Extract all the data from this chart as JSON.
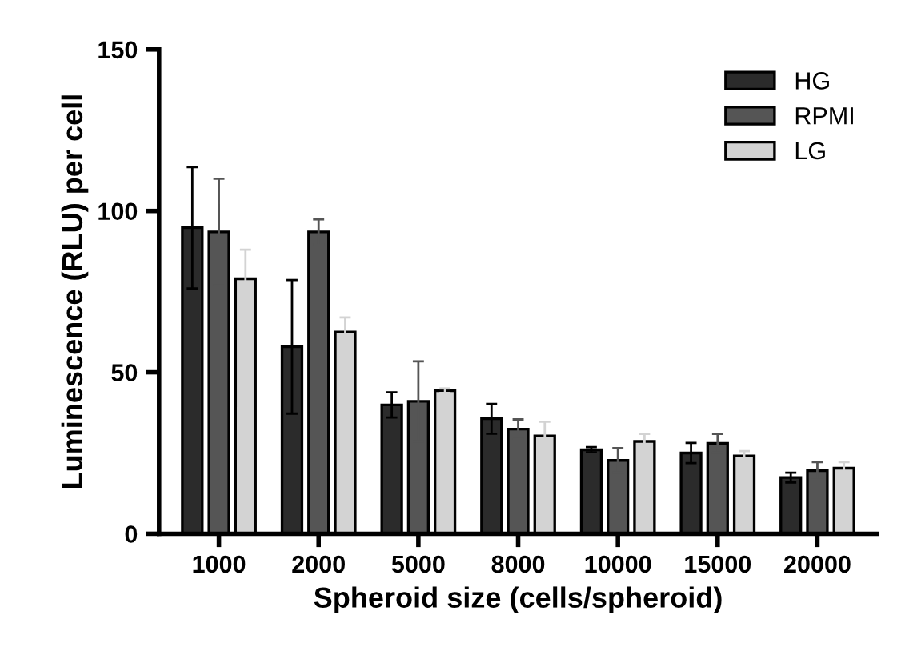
{
  "chart_data": {
    "type": "bar",
    "xlabel": "Spheroid size (cells/spheroid)",
    "ylabel": "Luminescence (RLU) per cell",
    "categories": [
      "1000",
      "2000",
      "5000",
      "8000",
      "10000",
      "15000",
      "20000"
    ],
    "series": [
      {
        "name": "HG",
        "color": "#2b2b2b",
        "values": [
          94.8,
          57.9,
          39.9,
          35.6,
          26,
          25,
          17.4
        ],
        "errors": [
          18.8,
          20.7,
          3.9,
          4.6,
          0.8,
          3.1,
          1.5
        ]
      },
      {
        "name": "RPMI",
        "color": "#555555",
        "values": [
          93.5,
          93.5,
          41,
          32.4,
          22.7,
          28,
          19.5
        ],
        "errors": [
          16.5,
          3.9,
          12.4,
          3,
          3.8,
          2.9,
          2.7
        ]
      },
      {
        "name": "LG",
        "color": "#d3d3d3",
        "values": [
          79,
          62.5,
          44.3,
          30.3,
          28.6,
          24.1,
          20.3
        ],
        "errors": [
          9,
          4.5,
          0.7,
          4.4,
          2.3,
          1.5,
          1.9
        ]
      }
    ],
    "ylim": [
      0,
      150
    ],
    "yticks": [
      0,
      50,
      100,
      150
    ],
    "grid": false,
    "legend": "top right"
  }
}
